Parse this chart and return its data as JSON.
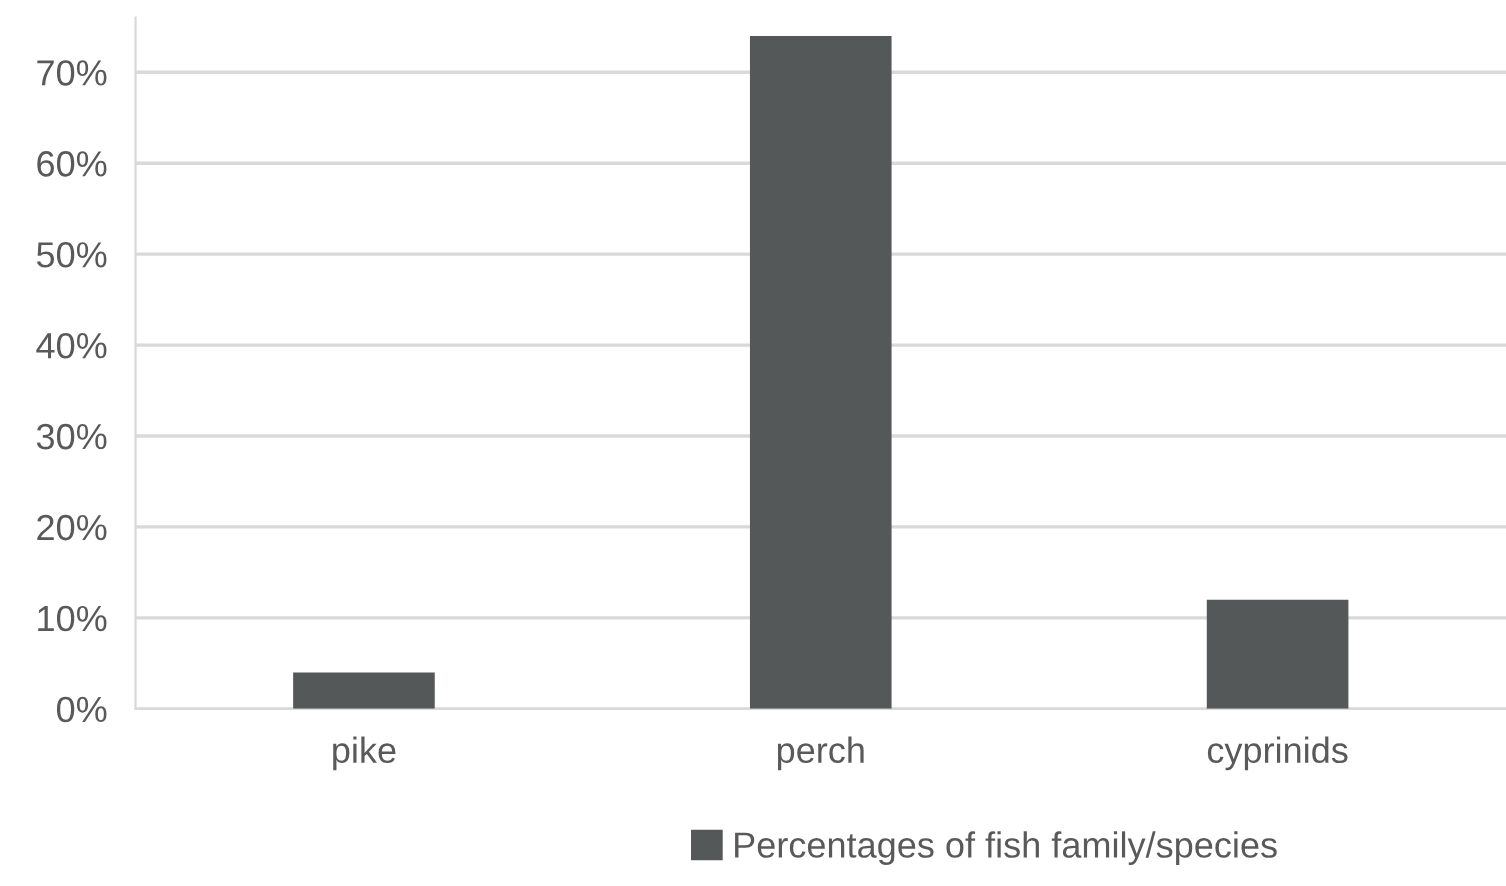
{
  "chart_data": {
    "type": "bar",
    "categories": [
      "pike",
      "perch",
      "cyprinids"
    ],
    "series": [
      {
        "name": "Percentages of fish family/species",
        "color": "#555859",
        "values": [
          4,
          74,
          12
        ]
      }
    ],
    "ylim": [
      0,
      76
    ],
    "yticks": [
      {
        "value": 0,
        "label": "0%"
      },
      {
        "value": 10,
        "label": "10%"
      },
      {
        "value": 20,
        "label": "20%"
      },
      {
        "value": 30,
        "label": "30%"
      },
      {
        "value": 40,
        "label": "40%"
      },
      {
        "value": 50,
        "label": "50%"
      },
      {
        "value": 60,
        "label": "60%"
      },
      {
        "value": 70,
        "label": "70%"
      }
    ],
    "grid": "y",
    "legend": "bottom"
  }
}
